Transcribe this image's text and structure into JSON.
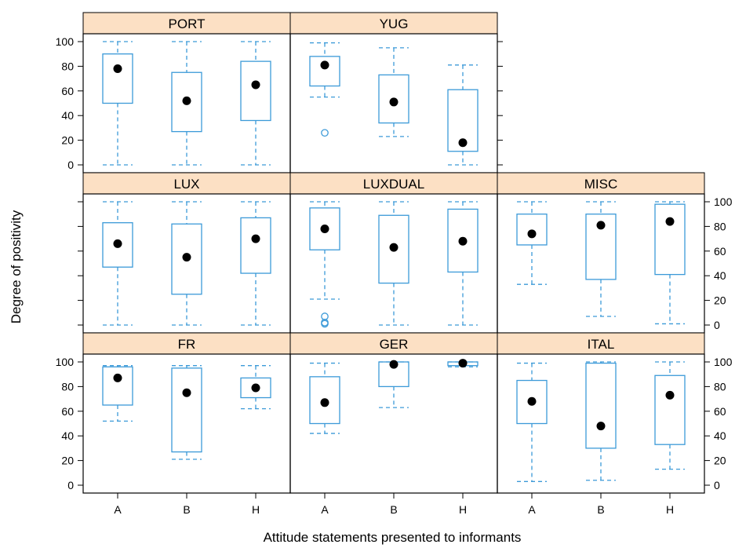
{
  "chart_data": {
    "type": "box",
    "xlabel": "Attitude statements presented to informants",
    "ylabel": "Degree of positivity",
    "categories": [
      "A",
      "B",
      "H"
    ],
    "ylim": [
      0,
      100
    ],
    "yticks": [
      0,
      20,
      40,
      60,
      80,
      100
    ],
    "grid": false,
    "colors": {
      "box": "#3c9ad8",
      "strip": "#fce0c4",
      "median": "#000000"
    },
    "panels": [
      {
        "name": "PORT",
        "row": 0,
        "col": 0,
        "yaxis": "left",
        "boxes": [
          {
            "cat": "A",
            "min": 0,
            "q1": 50,
            "median": 78,
            "q3": 90,
            "max": 100,
            "outliers": []
          },
          {
            "cat": "B",
            "min": 0,
            "q1": 27,
            "median": 52,
            "q3": 75,
            "max": 100,
            "outliers": []
          },
          {
            "cat": "H",
            "min": 0,
            "q1": 36,
            "median": 65,
            "q3": 84,
            "max": 100,
            "outliers": []
          }
        ]
      },
      {
        "name": "YUG",
        "row": 0,
        "col": 1,
        "yaxis": "none",
        "boxes": [
          {
            "cat": "A",
            "min": 55,
            "q1": 64,
            "median": 81,
            "q3": 88,
            "max": 99,
            "outliers": [
              26
            ]
          },
          {
            "cat": "B",
            "min": 23,
            "q1": 34,
            "median": 51,
            "q3": 73,
            "max": 95,
            "outliers": []
          },
          {
            "cat": "H",
            "min": 0,
            "q1": 11,
            "median": 18,
            "q3": 61,
            "max": 81,
            "outliers": []
          }
        ]
      },
      {
        "name": "LUX",
        "row": 1,
        "col": 0,
        "yaxis": "none",
        "boxes": [
          {
            "cat": "A",
            "min": 0,
            "q1": 47,
            "median": 66,
            "q3": 83,
            "max": 100,
            "outliers": []
          },
          {
            "cat": "B",
            "min": 0,
            "q1": 25,
            "median": 55,
            "q3": 82,
            "max": 100,
            "outliers": []
          },
          {
            "cat": "H",
            "min": 0,
            "q1": 42,
            "median": 70,
            "q3": 87,
            "max": 100,
            "outliers": []
          }
        ]
      },
      {
        "name": "LUXDUAL",
        "row": 1,
        "col": 1,
        "yaxis": "none",
        "boxes": [
          {
            "cat": "A",
            "min": 21,
            "q1": 61,
            "median": 78,
            "q3": 95,
            "max": 100,
            "outliers": [
              7,
              2,
              1
            ]
          },
          {
            "cat": "B",
            "min": 0,
            "q1": 34,
            "median": 63,
            "q3": 89,
            "max": 100,
            "outliers": []
          },
          {
            "cat": "H",
            "min": 0,
            "q1": 43,
            "median": 68,
            "q3": 94,
            "max": 100,
            "outliers": []
          }
        ]
      },
      {
        "name": "MISC",
        "row": 1,
        "col": 2,
        "yaxis": "right",
        "boxes": [
          {
            "cat": "A",
            "min": 33,
            "q1": 65,
            "median": 74,
            "q3": 90,
            "max": 100,
            "outliers": []
          },
          {
            "cat": "B",
            "min": 7,
            "q1": 37,
            "median": 81,
            "q3": 90,
            "max": 100,
            "outliers": []
          },
          {
            "cat": "H",
            "min": 1,
            "q1": 41,
            "median": 84,
            "q3": 98,
            "max": 100,
            "outliers": []
          }
        ]
      },
      {
        "name": "FR",
        "row": 2,
        "col": 0,
        "yaxis": "left",
        "boxes": [
          {
            "cat": "A",
            "min": 52,
            "q1": 65,
            "median": 87,
            "q3": 96,
            "max": 97,
            "outliers": []
          },
          {
            "cat": "B",
            "min": 21,
            "q1": 27,
            "median": 75,
            "q3": 95,
            "max": 97,
            "outliers": []
          },
          {
            "cat": "H",
            "min": 62,
            "q1": 71,
            "median": 79,
            "q3": 87,
            "max": 97,
            "outliers": []
          }
        ]
      },
      {
        "name": "GER",
        "row": 2,
        "col": 1,
        "yaxis": "none",
        "boxes": [
          {
            "cat": "A",
            "min": 42,
            "q1": 50,
            "median": 67,
            "q3": 88,
            "max": 99,
            "outliers": []
          },
          {
            "cat": "B",
            "min": 63,
            "q1": 80,
            "median": 98,
            "q3": 100,
            "max": 100,
            "outliers": []
          },
          {
            "cat": "H",
            "min": 96,
            "q1": 97,
            "median": 99,
            "q3": 100,
            "max": 100,
            "outliers": []
          }
        ]
      },
      {
        "name": "ITAL",
        "row": 2,
        "col": 2,
        "yaxis": "right",
        "boxes": [
          {
            "cat": "A",
            "min": 3,
            "q1": 50,
            "median": 68,
            "q3": 85,
            "max": 99,
            "outliers": []
          },
          {
            "cat": "B",
            "min": 4,
            "q1": 30,
            "median": 48,
            "q3": 99,
            "max": 100,
            "outliers": []
          },
          {
            "cat": "H",
            "min": 13,
            "q1": 33,
            "median": 73,
            "q3": 89,
            "max": 100,
            "outliers": []
          }
        ]
      }
    ]
  }
}
